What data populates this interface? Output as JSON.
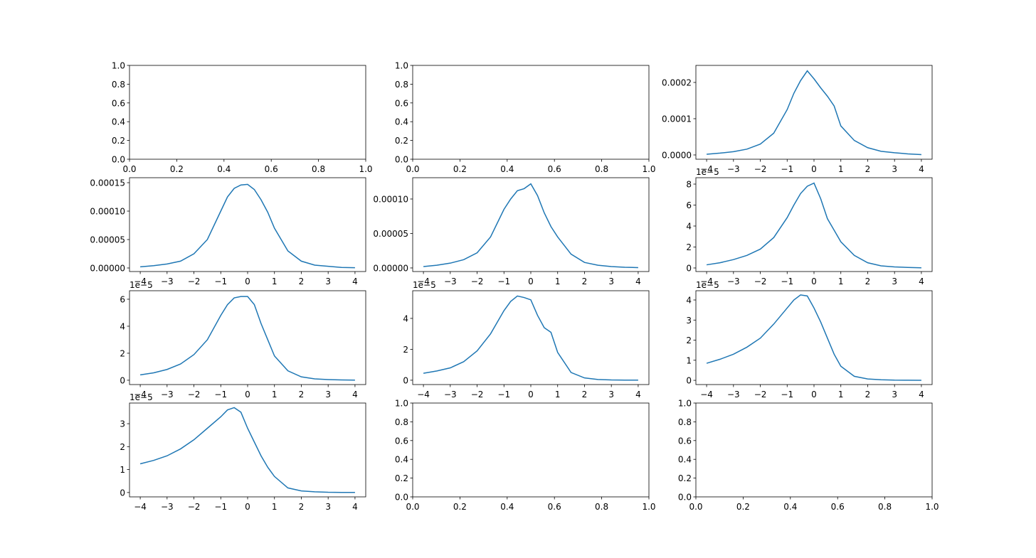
{
  "chart_data": [
    {
      "type": "line",
      "xlim": [
        0,
        1
      ],
      "ylim": [
        0,
        1
      ],
      "xticks": [
        {
          "value": 0,
          "label": "0.0"
        },
        {
          "value": 0.2,
          "label": "0.2"
        },
        {
          "value": 0.4,
          "label": "0.4"
        },
        {
          "value": 0.6,
          "label": "0.6"
        },
        {
          "value": 0.8,
          "label": "0.8"
        },
        {
          "value": 1,
          "label": "1.0"
        }
      ],
      "yticks": [
        {
          "value": 0,
          "label": "0.0"
        },
        {
          "value": 0.2,
          "label": "0.2"
        },
        {
          "value": 0.4,
          "label": "0.4"
        },
        {
          "value": 0.6,
          "label": "0.6"
        },
        {
          "value": 0.8,
          "label": "0.8"
        },
        {
          "value": 1,
          "label": "1.0"
        }
      ]
    },
    {
      "type": "line",
      "xlim": [
        0,
        1
      ],
      "ylim": [
        0,
        1
      ],
      "xticks": [
        {
          "value": 0,
          "label": "0.0"
        },
        {
          "value": 0.2,
          "label": "0.2"
        },
        {
          "value": 0.4,
          "label": "0.4"
        },
        {
          "value": 0.6,
          "label": "0.6"
        },
        {
          "value": 0.8,
          "label": "0.8"
        },
        {
          "value": 1,
          "label": "1.0"
        }
      ],
      "yticks": [
        {
          "value": 0,
          "label": "0.0"
        },
        {
          "value": 0.2,
          "label": "0.2"
        },
        {
          "value": 0.4,
          "label": "0.4"
        },
        {
          "value": 0.6,
          "label": "0.6"
        },
        {
          "value": 0.8,
          "label": "0.8"
        },
        {
          "value": 1,
          "label": "1.0"
        }
      ]
    },
    {
      "type": "line",
      "color": "#1f77b4",
      "xlim": [
        -4.4,
        4.4
      ],
      "ylim": [
        -1.18e-05,
        0.000247
      ],
      "xticks": [
        {
          "value": -4,
          "label": "−4"
        },
        {
          "value": -3,
          "label": "−3"
        },
        {
          "value": -2,
          "label": "−2"
        },
        {
          "value": -1,
          "label": "−1"
        },
        0,
        1,
        2,
        3,
        4
      ],
      "yticks": [
        {
          "value": 0,
          "label": "0.0000"
        },
        {
          "value": 0.0001,
          "label": "0.0001"
        },
        {
          "value": 0.0002,
          "label": "0.0002"
        }
      ],
      "x": [
        -4,
        -3.5,
        -3,
        -2.5,
        -2,
        -1.5,
        -1,
        -0.75,
        -0.5,
        -0.25,
        0,
        0.25,
        0.5,
        0.75,
        1,
        1.5,
        2,
        2.5,
        3,
        3.5,
        4
      ],
      "values": [
        2e-06,
        5e-06,
        9e-06,
        1.6e-05,
        3e-05,
        6e-05,
        0.000125,
        0.00017,
        0.000205,
        0.000232,
        0.00021,
        0.000185,
        0.000162,
        0.000135,
        8e-05,
        4e-05,
        2e-05,
        1e-05,
        6e-06,
        3e-06,
        1e-06
      ]
    },
    {
      "type": "line",
      "color": "#1f77b4",
      "xlim": [
        -4.4,
        4.4
      ],
      "ylim": [
        -6.25e-06,
        0.00015875
      ],
      "xticks": [
        {
          "value": -4,
          "label": "−4"
        },
        {
          "value": -3,
          "label": "−3"
        },
        {
          "value": -2,
          "label": "−2"
        },
        {
          "value": -1,
          "label": "−1"
        },
        0,
        1,
        2,
        3,
        4
      ],
      "yticks": [
        {
          "value": 0,
          "label": "0.00000"
        },
        {
          "value": 5e-05,
          "label": "0.00005"
        },
        {
          "value": 0.0001,
          "label": "0.00010"
        },
        {
          "value": 0.00015,
          "label": "0.00015"
        }
      ],
      "x": [
        -4,
        -3.5,
        -3,
        -2.5,
        -2,
        -1.5,
        -1,
        -0.75,
        -0.5,
        -0.25,
        0,
        0.25,
        0.5,
        0.75,
        1,
        1.5,
        2,
        2.5,
        3,
        3.5,
        4
      ],
      "values": [
        2e-06,
        4e-06,
        7e-06,
        1.2e-05,
        2.5e-05,
        5e-05,
        0.0001,
        0.000125,
        0.00014,
        0.000146,
        0.000147,
        0.000138,
        0.00012,
        9.8e-05,
        7e-05,
        3e-05,
        1.2e-05,
        5e-06,
        3e-06,
        1e-06,
        5e-07
      ]
    },
    {
      "type": "line",
      "color": "#1f77b4",
      "xlim": [
        -4.4,
        4.4
      ],
      "ylim": [
        -5.2e-06,
        0.0001309
      ],
      "xticks": [
        {
          "value": -4,
          "label": "−4"
        },
        {
          "value": -3,
          "label": "−3"
        },
        {
          "value": -2,
          "label": "−2"
        },
        {
          "value": -1,
          "label": "−1"
        },
        0,
        1,
        2,
        3,
        4
      ],
      "yticks": [
        {
          "value": 0,
          "label": "0.00000"
        },
        {
          "value": 5e-05,
          "label": "0.00005"
        },
        {
          "value": 0.0001,
          "label": "0.00010"
        }
      ],
      "x": [
        -4,
        -3.5,
        -3,
        -2.5,
        -2,
        -1.5,
        -1,
        -0.75,
        -0.5,
        -0.25,
        0,
        0.25,
        0.5,
        0.75,
        1,
        1.5,
        2,
        2.5,
        3,
        3.5,
        4
      ],
      "values": [
        2e-06,
        4e-06,
        7e-06,
        1.2e-05,
        2.2e-05,
        4.5e-05,
        8.5e-05,
        0.0001,
        0.000112,
        0.000115,
        0.000122,
        0.000105,
        8e-05,
        6e-05,
        4.5e-05,
        2e-05,
        8e-06,
        4e-06,
        2e-06,
        1e-06,
        5e-07
      ]
    },
    {
      "type": "line",
      "color": "#1f77b4",
      "offset_text": "1e−5",
      "xlim": [
        -4.4,
        4.4
      ],
      "ylim": [
        -0.34,
        8.61
      ],
      "xticks": [
        {
          "value": -4,
          "label": "−4"
        },
        {
          "value": -3,
          "label": "−3"
        },
        {
          "value": -2,
          "label": "−2"
        },
        {
          "value": -1,
          "label": "−1"
        },
        0,
        1,
        2,
        3,
        4
      ],
      "yticks": [
        0,
        2,
        4,
        6,
        8
      ],
      "x": [
        -4,
        -3.5,
        -3,
        -2.5,
        -2,
        -1.5,
        -1,
        -0.75,
        -0.5,
        -0.25,
        0,
        0.25,
        0.5,
        0.75,
        1,
        1.5,
        2,
        2.5,
        3,
        3.5,
        4
      ],
      "values": [
        0.3,
        0.5,
        0.8,
        1.2,
        1.8,
        2.9,
        4.8,
        6,
        7.1,
        7.8,
        8.1,
        6.6,
        4.7,
        3.6,
        2.5,
        1.2,
        0.5,
        0.2,
        0.1,
        0.05,
        0.02
      ]
    },
    {
      "type": "line",
      "color": "#1f77b4",
      "offset_text": "1e−5",
      "xlim": [
        -4.4,
        4.4
      ],
      "ylim": [
        -0.32,
        6.63
      ],
      "xticks": [
        {
          "value": -4,
          "label": "−4"
        },
        {
          "value": -3,
          "label": "−3"
        },
        {
          "value": -2,
          "label": "−2"
        },
        {
          "value": -1,
          "label": "−1"
        },
        0,
        1,
        2,
        3,
        4
      ],
      "yticks": [
        0,
        2,
        4,
        6
      ],
      "x": [
        -4,
        -3.5,
        -3,
        -2.5,
        -2,
        -1.5,
        -1,
        -0.75,
        -0.5,
        -0.25,
        0,
        0.25,
        0.5,
        0.75,
        1,
        1.5,
        2,
        2.5,
        3,
        3.5,
        4
      ],
      "values": [
        0.4,
        0.55,
        0.8,
        1.2,
        1.9,
        3,
        4.8,
        5.6,
        6.1,
        6.2,
        6.2,
        5.6,
        4.2,
        3,
        1.8,
        0.7,
        0.25,
        0.1,
        0.05,
        0.02,
        0.01
      ]
    },
    {
      "type": "line",
      "color": "#1f77b4",
      "offset_text": "1e−5",
      "xlim": [
        -4.4,
        4.4
      ],
      "ylim": [
        -0.28,
        5.79
      ],
      "xticks": [
        {
          "value": -4,
          "label": "−4"
        },
        {
          "value": -3,
          "label": "−3"
        },
        {
          "value": -2,
          "label": "−2"
        },
        {
          "value": -1,
          "label": "−1"
        },
        0,
        1,
        2,
        3,
        4
      ],
      "yticks": [
        0,
        2,
        4
      ],
      "x": [
        -4,
        -3.5,
        -3,
        -2.5,
        -2,
        -1.5,
        -1,
        -0.75,
        -0.5,
        -0.25,
        0,
        0.25,
        0.5,
        0.75,
        1,
        1.5,
        2,
        2.5,
        3,
        3.5,
        4
      ],
      "values": [
        0.45,
        0.6,
        0.8,
        1.2,
        1.9,
        3,
        4.5,
        5.1,
        5.45,
        5.35,
        5.2,
        4.2,
        3.4,
        3.1,
        1.8,
        0.5,
        0.15,
        0.05,
        0.02,
        0.01,
        0.005
      ]
    },
    {
      "type": "line",
      "color": "#1f77b4",
      "offset_text": "1e−5",
      "xlim": [
        -4.4,
        4.4
      ],
      "ylim": [
        -0.21,
        4.46
      ],
      "xticks": [
        {
          "value": -4,
          "label": "−4"
        },
        {
          "value": -3,
          "label": "−3"
        },
        {
          "value": -2,
          "label": "−2"
        },
        {
          "value": -1,
          "label": "−1"
        },
        0,
        1,
        2,
        3,
        4
      ],
      "yticks": [
        0,
        1,
        2,
        3,
        4
      ],
      "x": [
        -4,
        -3.5,
        -3,
        -2.5,
        -2,
        -1.5,
        -1,
        -0.75,
        -0.5,
        -0.25,
        0,
        0.25,
        0.5,
        0.75,
        1,
        1.5,
        2,
        2.5,
        3,
        3.5,
        4
      ],
      "values": [
        0.85,
        1.05,
        1.3,
        1.65,
        2.1,
        2.8,
        3.6,
        4,
        4.25,
        4.2,
        3.6,
        2.9,
        2.1,
        1.3,
        0.7,
        0.2,
        0.07,
        0.03,
        0.01,
        0.005,
        0.002
      ]
    },
    {
      "type": "line",
      "color": "#1f77b4",
      "offset_text": "1e−5",
      "xlim": [
        -4.4,
        4.4
      ],
      "ylim": [
        -0.19,
        3.9
      ],
      "xticks": [
        {
          "value": -4,
          "label": "−4"
        },
        {
          "value": -3,
          "label": "−3"
        },
        {
          "value": -2,
          "label": "−2"
        },
        {
          "value": -1,
          "label": "−1"
        },
        0,
        1,
        2,
        3,
        4
      ],
      "yticks": [
        0,
        1,
        2,
        3
      ],
      "x": [
        -4,
        -3.5,
        -3,
        -2.5,
        -2,
        -1.5,
        -1,
        -0.75,
        -0.5,
        -0.25,
        0,
        0.25,
        0.5,
        0.75,
        1,
        1.5,
        2,
        2.5,
        3,
        3.5,
        4
      ],
      "values": [
        1.25,
        1.4,
        1.6,
        1.9,
        2.3,
        2.8,
        3.3,
        3.6,
        3.7,
        3.5,
        2.8,
        2.2,
        1.6,
        1.1,
        0.7,
        0.2,
        0.07,
        0.03,
        0.01,
        0.005,
        0.002
      ]
    },
    {
      "type": "line",
      "xlim": [
        0,
        1
      ],
      "ylim": [
        0,
        1
      ],
      "xticks": [
        {
          "value": 0,
          "label": "0.0"
        },
        {
          "value": 0.2,
          "label": "0.2"
        },
        {
          "value": 0.4,
          "label": "0.4"
        },
        {
          "value": 0.6,
          "label": "0.6"
        },
        {
          "value": 0.8,
          "label": "0.8"
        },
        {
          "value": 1,
          "label": "1.0"
        }
      ],
      "yticks": [
        {
          "value": 0,
          "label": "0.0"
        },
        {
          "value": 0.2,
          "label": "0.2"
        },
        {
          "value": 0.4,
          "label": "0.4"
        },
        {
          "value": 0.6,
          "label": "0.6"
        },
        {
          "value": 0.8,
          "label": "0.8"
        },
        {
          "value": 1,
          "label": "1.0"
        }
      ]
    },
    {
      "type": "line",
      "xlim": [
        0,
        1
      ],
      "ylim": [
        0,
        1
      ],
      "xticks": [
        {
          "value": 0,
          "label": "0.0"
        },
        {
          "value": 0.2,
          "label": "0.2"
        },
        {
          "value": 0.4,
          "label": "0.4"
        },
        {
          "value": 0.6,
          "label": "0.6"
        },
        {
          "value": 0.8,
          "label": "0.8"
        },
        {
          "value": 1,
          "label": "1.0"
        }
      ],
      "yticks": [
        {
          "value": 0,
          "label": "0.0"
        },
        {
          "value": 0.2,
          "label": "0.2"
        },
        {
          "value": 0.4,
          "label": "0.4"
        },
        {
          "value": 0.6,
          "label": "0.6"
        },
        {
          "value": 0.8,
          "label": "0.8"
        },
        {
          "value": 1,
          "label": "1.0"
        }
      ]
    }
  ]
}
